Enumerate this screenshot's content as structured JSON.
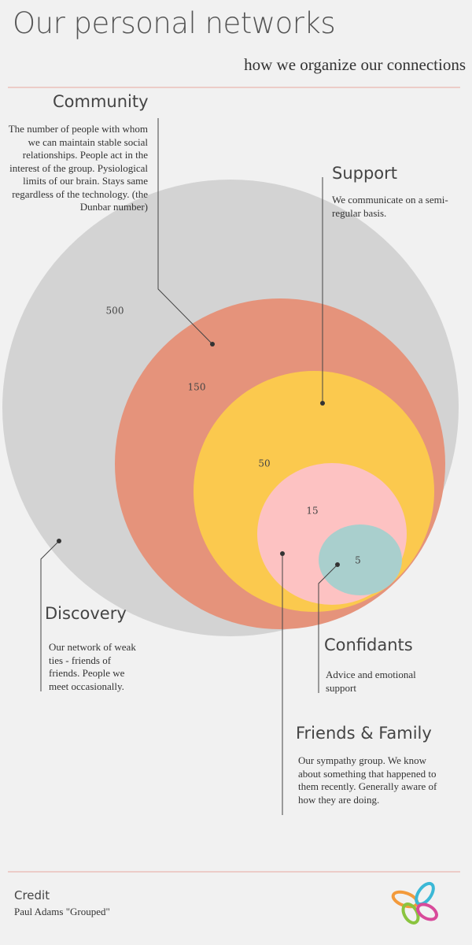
{
  "header": {
    "title": "Our personal networks",
    "subtitle": "how we organize our connections"
  },
  "rings": [
    {
      "count": 500
    },
    {
      "count": 150
    },
    {
      "count": 50
    },
    {
      "count": 15
    },
    {
      "count": 5
    }
  ],
  "groups": [
    {
      "label": "Community",
      "description": "The number of people with whom we can maintain stable social relationships. People act in the interest of the group. Pysiological limits of our brain. Stays same regardless of the technology. (the Dunbar number)"
    },
    {
      "label": "Support",
      "description": "We communicate on a semi-regular basis."
    },
    {
      "label": "Discovery",
      "description": "Our network of weak ties - friends of friends. People we meet occasionally."
    },
    {
      "label": "Confidants",
      "description": "Advice and emotional support"
    },
    {
      "label": "Friends & Family",
      "description": "Our sympathy group. We know about something that happened to them recently. Generally aware of how they are doing."
    }
  ],
  "footer": {
    "heading": "Credit",
    "text": "Paul Adams \"Grouped\""
  }
}
